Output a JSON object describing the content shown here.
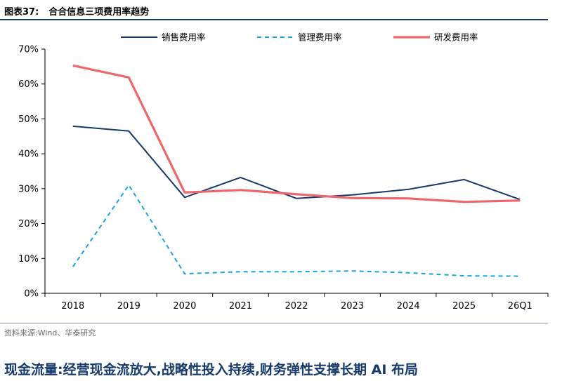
{
  "figure": {
    "label": "图表37:",
    "title": "合合信息三项费用率趋势"
  },
  "source": "资料来源:Wind、华泰研究",
  "headline": "现金流量:经营现金流放大,战略性投入持续,财务弹性支撑长期 AI 布局",
  "colors": {
    "sales": "#163a6b",
    "admin": "#1aa6d8",
    "rnd": "#f0656a",
    "title_rule": "#163a6b"
  },
  "chart_data": {
    "type": "line",
    "categories": [
      "2018",
      "2019",
      "2020",
      "2021",
      "2022",
      "2023",
      "2024",
      "2025",
      "26Q1"
    ],
    "y_ticks": [
      "0%",
      "10%",
      "20%",
      "30%",
      "40%",
      "50%",
      "60%",
      "70%"
    ],
    "ylim": [
      0,
      70
    ],
    "y_unit": "%",
    "grid": false,
    "legend_position": "top",
    "series": [
      {
        "name": "销售费用率",
        "style": "solid",
        "color_key": "sales",
        "values": [
          47.9,
          46.5,
          27.5,
          33.2,
          27.2,
          28.2,
          29.8,
          32.6,
          26.9
        ]
      },
      {
        "name": "管理费用率",
        "style": "dashed",
        "color_key": "admin",
        "values": [
          7.6,
          31.0,
          5.6,
          6.2,
          6.2,
          6.4,
          5.9,
          5.0,
          4.9
        ]
      },
      {
        "name": "研发费用率",
        "style": "solid-thick",
        "color_key": "rnd",
        "values": [
          65.3,
          61.9,
          28.9,
          29.6,
          28.4,
          27.3,
          27.2,
          26.2,
          26.6
        ]
      }
    ]
  }
}
